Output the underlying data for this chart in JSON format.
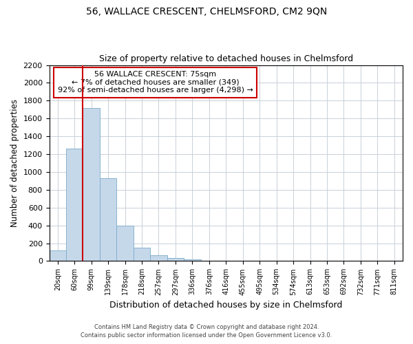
{
  "title": "56, WALLACE CRESCENT, CHELMSFORD, CM2 9QN",
  "subtitle": "Size of property relative to detached houses in Chelmsford",
  "xlabel": "Distribution of detached houses by size in Chelmsford",
  "ylabel": "Number of detached properties",
  "bar_color": "#c5d8ea",
  "bar_edge_color": "#7aaac8",
  "annotation_box_color": "#cc0000",
  "annotation_lines": [
    "56 WALLACE CRESCENT: 75sqm",
    "← 7% of detached houses are smaller (349)",
    "92% of semi-detached houses are larger (4,298) →"
  ],
  "vline_color": "#cc0000",
  "categories": [
    "20sqm",
    "60sqm",
    "99sqm",
    "139sqm",
    "178sqm",
    "218sqm",
    "257sqm",
    "297sqm",
    "336sqm",
    "376sqm",
    "416sqm",
    "455sqm",
    "495sqm",
    "534sqm",
    "574sqm",
    "613sqm",
    "653sqm",
    "692sqm",
    "732sqm",
    "771sqm",
    "811sqm"
  ],
  "values": [
    120,
    1260,
    1720,
    930,
    400,
    150,
    65,
    35,
    20,
    0,
    0,
    0,
    0,
    0,
    0,
    0,
    0,
    0,
    0,
    0,
    0
  ],
  "ylim": [
    0,
    2200
  ],
  "yticks": [
    0,
    200,
    400,
    600,
    800,
    1000,
    1200,
    1400,
    1600,
    1800,
    2000,
    2200
  ],
  "footnote_line1": "Contains HM Land Registry data © Crown copyright and database right 2024.",
  "footnote_line2": "Contains public sector information licensed under the Open Government Licence v3.0.",
  "background_color": "#ffffff",
  "grid_color": "#c8d0d8"
}
